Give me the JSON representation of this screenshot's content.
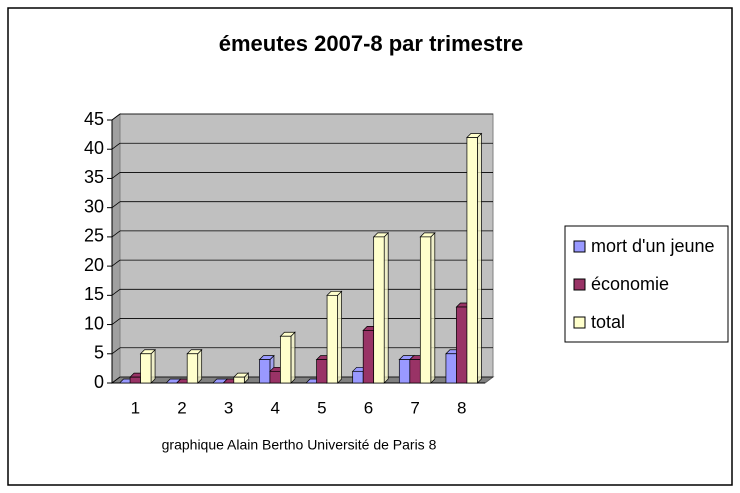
{
  "chart_data": {
    "type": "bar3d",
    "title": "émeutes 2007-8 par trimestre",
    "x_label": "graphique Alain Bertho Université de Paris 8",
    "categories": [
      "1",
      "2",
      "3",
      "4",
      "5",
      "6",
      "7",
      "8"
    ],
    "series": [
      {
        "name": "mort d'un jeune",
        "color": "#9999ff",
        "values": [
          0,
          0,
          0,
          4,
          0,
          2,
          4,
          5
        ]
      },
      {
        "name": "économie",
        "color": "#993366",
        "values": [
          1,
          0,
          0,
          2,
          4,
          9,
          4,
          13
        ]
      },
      {
        "name": "total",
        "color": "#ffffcc",
        "values": [
          5,
          5,
          1,
          8,
          15,
          25,
          25,
          42
        ]
      }
    ],
    "ylim": [
      0,
      45
    ],
    "yticks": [
      0,
      5,
      10,
      15,
      20,
      25,
      30,
      35,
      40,
      45
    ],
    "grid": true
  }
}
